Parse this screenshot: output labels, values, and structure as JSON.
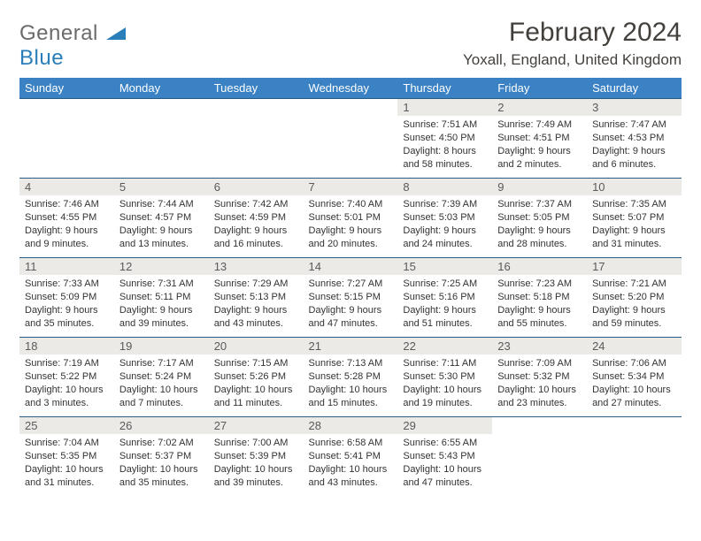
{
  "brand": {
    "part1": "General",
    "part2": "Blue"
  },
  "title": "February 2024",
  "location": "Yoxall, England, United Kingdom",
  "colors": {
    "header_bg": "#3b82c4",
    "header_text": "#ffffff",
    "row_border": "#2a5b82",
    "daynum_bg": "#eceae7",
    "body_bg": "#ffffff",
    "text": "#333333",
    "logo_gray": "#6b6b6b",
    "logo_blue": "#2a7fba"
  },
  "day_headers": [
    "Sunday",
    "Monday",
    "Tuesday",
    "Wednesday",
    "Thursday",
    "Friday",
    "Saturday"
  ],
  "weeks": [
    [
      null,
      null,
      null,
      null,
      {
        "n": "1",
        "sr": "7:51 AM",
        "ss": "4:50 PM",
        "dl": "8 hours and 58 minutes."
      },
      {
        "n": "2",
        "sr": "7:49 AM",
        "ss": "4:51 PM",
        "dl": "9 hours and 2 minutes."
      },
      {
        "n": "3",
        "sr": "7:47 AM",
        "ss": "4:53 PM",
        "dl": "9 hours and 6 minutes."
      }
    ],
    [
      {
        "n": "4",
        "sr": "7:46 AM",
        "ss": "4:55 PM",
        "dl": "9 hours and 9 minutes."
      },
      {
        "n": "5",
        "sr": "7:44 AM",
        "ss": "4:57 PM",
        "dl": "9 hours and 13 minutes."
      },
      {
        "n": "6",
        "sr": "7:42 AM",
        "ss": "4:59 PM",
        "dl": "9 hours and 16 minutes."
      },
      {
        "n": "7",
        "sr": "7:40 AM",
        "ss": "5:01 PM",
        "dl": "9 hours and 20 minutes."
      },
      {
        "n": "8",
        "sr": "7:39 AM",
        "ss": "5:03 PM",
        "dl": "9 hours and 24 minutes."
      },
      {
        "n": "9",
        "sr": "7:37 AM",
        "ss": "5:05 PM",
        "dl": "9 hours and 28 minutes."
      },
      {
        "n": "10",
        "sr": "7:35 AM",
        "ss": "5:07 PM",
        "dl": "9 hours and 31 minutes."
      }
    ],
    [
      {
        "n": "11",
        "sr": "7:33 AM",
        "ss": "5:09 PM",
        "dl": "9 hours and 35 minutes."
      },
      {
        "n": "12",
        "sr": "7:31 AM",
        "ss": "5:11 PM",
        "dl": "9 hours and 39 minutes."
      },
      {
        "n": "13",
        "sr": "7:29 AM",
        "ss": "5:13 PM",
        "dl": "9 hours and 43 minutes."
      },
      {
        "n": "14",
        "sr": "7:27 AM",
        "ss": "5:15 PM",
        "dl": "9 hours and 47 minutes."
      },
      {
        "n": "15",
        "sr": "7:25 AM",
        "ss": "5:16 PM",
        "dl": "9 hours and 51 minutes."
      },
      {
        "n": "16",
        "sr": "7:23 AM",
        "ss": "5:18 PM",
        "dl": "9 hours and 55 minutes."
      },
      {
        "n": "17",
        "sr": "7:21 AM",
        "ss": "5:20 PM",
        "dl": "9 hours and 59 minutes."
      }
    ],
    [
      {
        "n": "18",
        "sr": "7:19 AM",
        "ss": "5:22 PM",
        "dl": "10 hours and 3 minutes."
      },
      {
        "n": "19",
        "sr": "7:17 AM",
        "ss": "5:24 PM",
        "dl": "10 hours and 7 minutes."
      },
      {
        "n": "20",
        "sr": "7:15 AM",
        "ss": "5:26 PM",
        "dl": "10 hours and 11 minutes."
      },
      {
        "n": "21",
        "sr": "7:13 AM",
        "ss": "5:28 PM",
        "dl": "10 hours and 15 minutes."
      },
      {
        "n": "22",
        "sr": "7:11 AM",
        "ss": "5:30 PM",
        "dl": "10 hours and 19 minutes."
      },
      {
        "n": "23",
        "sr": "7:09 AM",
        "ss": "5:32 PM",
        "dl": "10 hours and 23 minutes."
      },
      {
        "n": "24",
        "sr": "7:06 AM",
        "ss": "5:34 PM",
        "dl": "10 hours and 27 minutes."
      }
    ],
    [
      {
        "n": "25",
        "sr": "7:04 AM",
        "ss": "5:35 PM",
        "dl": "10 hours and 31 minutes."
      },
      {
        "n": "26",
        "sr": "7:02 AM",
        "ss": "5:37 PM",
        "dl": "10 hours and 35 minutes."
      },
      {
        "n": "27",
        "sr": "7:00 AM",
        "ss": "5:39 PM",
        "dl": "10 hours and 39 minutes."
      },
      {
        "n": "28",
        "sr": "6:58 AM",
        "ss": "5:41 PM",
        "dl": "10 hours and 43 minutes."
      },
      {
        "n": "29",
        "sr": "6:55 AM",
        "ss": "5:43 PM",
        "dl": "10 hours and 47 minutes."
      },
      null,
      null
    ]
  ],
  "labels": {
    "sunrise": "Sunrise:",
    "sunset": "Sunset:",
    "daylight": "Daylight:"
  }
}
